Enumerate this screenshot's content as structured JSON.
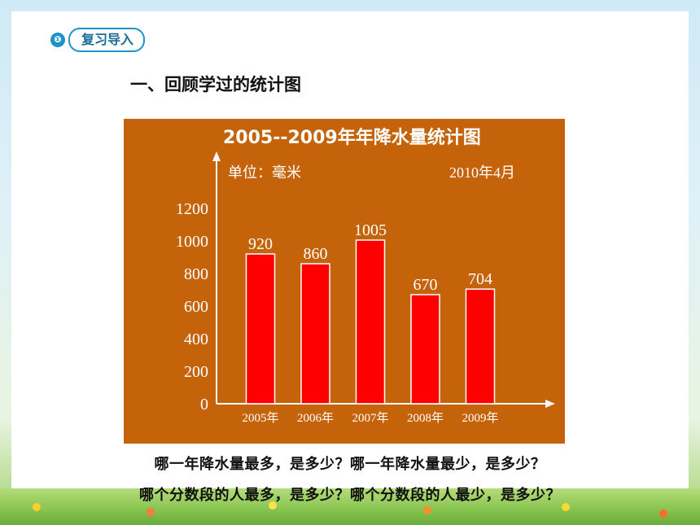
{
  "section_tag": {
    "label": "复习导入",
    "bullet": "❶"
  },
  "heading": "一、回顾学过的统计图",
  "chart_data": {
    "type": "bar",
    "title": "2005--2009年年降水量统计图",
    "unit": "单位：毫米",
    "date": "2010年4月",
    "categories": [
      "2005年",
      "2006年",
      "2007年",
      "2008年",
      "2009年"
    ],
    "values": [
      920,
      860,
      1005,
      670,
      704
    ],
    "data_labels": [
      "920",
      "860",
      "1005",
      "670",
      "704"
    ],
    "yticks": [
      "0",
      "200",
      "400",
      "600",
      "800",
      "1000",
      "1200"
    ],
    "ylim": [
      0,
      1200
    ],
    "bar_color": "#ff0000",
    "panel_color": "#c5630a"
  },
  "questions": [
    "哪一年降水量最多，是多少？哪一年降水量最少，是多少？",
    "哪个分数段的人最多，是多少？哪个分数段的人最少，是多少？"
  ]
}
